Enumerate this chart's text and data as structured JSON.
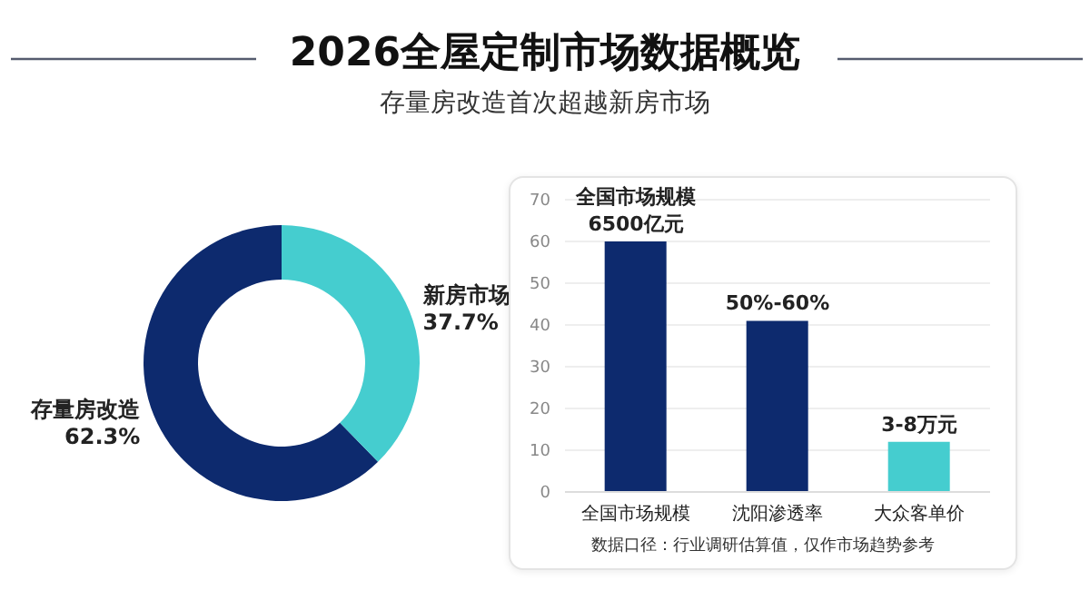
{
  "chart_data": [
    {
      "type": "donut",
      "title": "2026全屋定制市场数据概览",
      "subtitle": "存量房改造首次超越新房市场",
      "categories": [
        "存量房改造",
        "新房市场"
      ],
      "values": [
        62.3,
        37.7
      ],
      "colors": [
        "#0d2a6e",
        "#45cdcf"
      ],
      "value_labels": [
        "62.3%",
        "37.7%"
      ]
    },
    {
      "type": "bar",
      "categories": [
        "全国市场规模",
        "沈阳渗透率",
        "大众客单价"
      ],
      "values": [
        60,
        41,
        12
      ],
      "colors": [
        "#0d2a6e",
        "#0d2a6e",
        "#45cdcf"
      ],
      "ylim": [
        0,
        70
      ],
      "yticks": [
        0,
        10,
        20,
        30,
        40,
        50,
        60,
        70
      ],
      "grid": "y",
      "annotations": [
        {
          "text": "全国市场规模",
          "x": "全国市场规模",
          "y": 60
        },
        {
          "text": "6500亿元",
          "x": "全国市场规模",
          "y": 60
        },
        {
          "text": "50%-60%",
          "x": "沈阳渗透率",
          "y": 41
        },
        {
          "text": "3-8万元",
          "x": "大众客单价",
          "y": 12
        },
        "数据口径：行业调研估算值，仅作市场趋势参考"
      ]
    }
  ]
}
